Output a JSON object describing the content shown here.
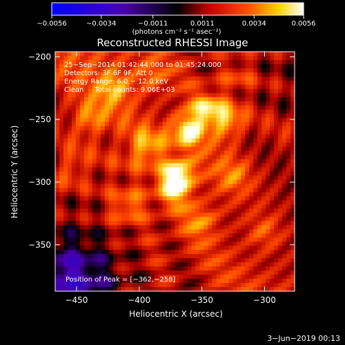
{
  "colorbar": {
    "min": -0.0056,
    "max": 0.0056,
    "tick_values": [
      -0.0056,
      -0.0034,
      -0.0011,
      0.0011,
      0.0034,
      0.0056
    ],
    "tick_labels": [
      "−0.0056",
      "−0.0034",
      "−0.0011",
      "0.0011",
      "0.0034",
      "0.0056"
    ],
    "unit_label": "(photons cm⁻² s⁻¹ asec⁻²)",
    "colors": [
      "#0000ff",
      "#000000",
      "#ff0000",
      "#ffff00",
      "#ffffff"
    ]
  },
  "chart_data": {
    "type": "heatmap",
    "title": "Reconstructed RHESSI Image",
    "xlabel": "Heliocentric X (arcsec)",
    "ylabel": "Heliocentric Y (arcsec)",
    "xlim": [
      -467,
      -276
    ],
    "ylim": [
      -387,
      -196
    ],
    "x_ticks": [
      -450,
      -400,
      -350,
      -300
    ],
    "x_tick_labels": [
      "−450",
      "−400",
      "−350",
      "−300"
    ],
    "y_ticks": [
      -200,
      -250,
      -300,
      -350
    ],
    "y_tick_labels": [
      "−200",
      "−250",
      "−300",
      "−350"
    ],
    "annotations": [
      "25−Sep−2014 01:42:44.000 to 01:45:24.000",
      "Detectors: 3F 6F 9F, Att 0",
      "Energy Range: 6.0 − 12.0 keV",
      "Clean     Total counts: 9.06E+03"
    ],
    "peak_label": "Position of Peak = [−362,−258]",
    "peak": [
      -362,
      -258
    ],
    "sources": [
      {
        "x": -362,
        "y": -258,
        "value": 0.0056
      },
      {
        "x": -368,
        "y": -293,
        "value": 0.0052
      },
      {
        "x": -345,
        "y": -242,
        "value": 0.0048
      },
      {
        "x": -372,
        "y": -305,
        "value": 0.0044
      },
      {
        "x": -330,
        "y": -252,
        "value": 0.004
      },
      {
        "x": -395,
        "y": -272,
        "value": 0.0036
      },
      {
        "x": -420,
        "y": -225,
        "value": 0.0034
      },
      {
        "x": -440,
        "y": -250,
        "value": 0.003
      },
      {
        "x": -410,
        "y": -320,
        "value": 0.0028
      },
      {
        "x": -350,
        "y": -330,
        "value": 0.0026
      },
      {
        "x": -325,
        "y": -295,
        "value": 0.0024
      },
      {
        "x": -300,
        "y": -340,
        "value": 0.0022
      },
      {
        "x": -455,
        "y": -290,
        "value": 0.002
      },
      {
        "x": -390,
        "y": -215,
        "value": 0.0022
      },
      {
        "x": -320,
        "y": -215,
        "value": 0.0018
      }
    ],
    "negative_region": {
      "x": -455,
      "y": -377,
      "value": -0.003
    }
  },
  "footer": {
    "timestamp": "3−Jun−2019 00:13"
  }
}
